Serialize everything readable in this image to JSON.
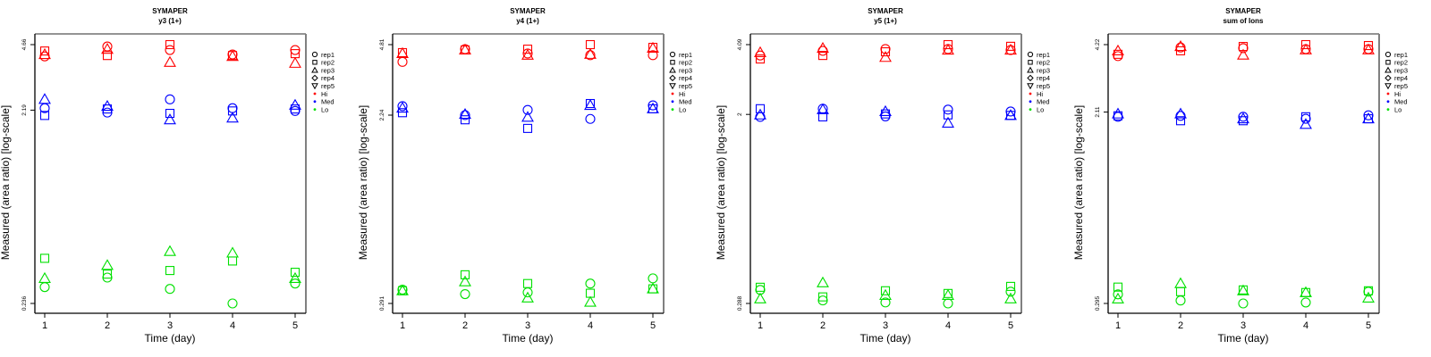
{
  "chart_data": [
    {
      "type": "scatter",
      "title": "SYMAPER",
      "subtitle": "y3 (1+)",
      "xlabel": "Time (day)",
      "ylabel": "Measured (area ratio) [log-scale]",
      "yscale": "log",
      "x_ticks": [
        "1",
        "2",
        "3",
        "4",
        "5"
      ],
      "y_ticks": [
        {
          "value": 4.66,
          "label": "4.66"
        },
        {
          "value": 2.19,
          "label": "2.19"
        },
        {
          "value": 0.236,
          "label": "0.236"
        }
      ],
      "ylim": [
        0.236,
        4.66
      ],
      "legend_position": "right",
      "series": [
        {
          "group": "Hi",
          "rep": "rep1",
          "values": [
            4.07,
            4.56,
            4.38,
            4.16,
            4.38
          ]
        },
        {
          "group": "Hi",
          "rep": "rep2",
          "values": [
            4.33,
            4.11,
            4.66,
            4.11,
            4.2
          ]
        },
        {
          "group": "Hi",
          "rep": "rep3",
          "values": [
            4.16,
            4.42,
            3.8,
            4.07,
            3.76
          ]
        },
        {
          "group": "Med",
          "rep": "rep1",
          "values": [
            2.24,
            2.13,
            2.48,
            2.24,
            2.17
          ]
        },
        {
          "group": "Med",
          "rep": "rep2",
          "values": [
            2.06,
            2.22,
            2.11,
            2.17,
            2.22
          ]
        },
        {
          "group": "Med",
          "rep": "rep3",
          "values": [
            2.48,
            2.29,
            1.96,
            2.0,
            2.32
          ]
        },
        {
          "group": "Lo",
          "rep": "rep1",
          "values": [
            0.285,
            0.318,
            0.279,
            0.236,
            0.297
          ]
        },
        {
          "group": "Lo",
          "rep": "rep2",
          "values": [
            0.397,
            0.331,
            0.345,
            0.385,
            0.338
          ]
        },
        {
          "group": "Lo",
          "rep": "rep3",
          "values": [
            0.315,
            0.366,
            0.43,
            0.422,
            0.315
          ]
        }
      ]
    },
    {
      "type": "scatter",
      "title": "SYMAPER",
      "subtitle": "y4 (1+)",
      "xlabel": "Time (day)",
      "ylabel": "Measured (area ratio) [log-scale]",
      "yscale": "log",
      "x_ticks": [
        "1",
        "2",
        "3",
        "4",
        "5"
      ],
      "y_ticks": [
        {
          "value": 4.81,
          "label": "4.81"
        },
        {
          "value": 2.24,
          "label": "2.24"
        },
        {
          "value": 0.291,
          "label": "0.291"
        }
      ],
      "ylim": [
        0.291,
        4.81
      ],
      "legend_position": "right",
      "series": [
        {
          "group": "Hi",
          "rep": "rep1",
          "values": [
            3.99,
            4.58,
            4.37,
            4.29,
            4.29
          ]
        },
        {
          "group": "Hi",
          "rep": "rep2",
          "values": [
            4.41,
            4.54,
            4.58,
            4.81,
            4.67
          ]
        },
        {
          "group": "Hi",
          "rep": "rep3",
          "values": [
            4.37,
            4.54,
            4.29,
            4.33,
            4.63
          ]
        },
        {
          "group": "Med",
          "rep": "rep1",
          "values": [
            2.47,
            2.24,
            2.37,
            2.15,
            2.49
          ]
        },
        {
          "group": "Med",
          "rep": "rep2",
          "values": [
            2.3,
            2.13,
            1.94,
            2.54,
            2.4
          ]
        },
        {
          "group": "Med",
          "rep": "rep3",
          "values": [
            2.42,
            2.26,
            2.19,
            2.49,
            2.4
          ]
        },
        {
          "group": "Lo",
          "rep": "rep1",
          "values": [
            0.338,
            0.322,
            0.328,
            0.361,
            0.382
          ]
        },
        {
          "group": "Lo",
          "rep": "rep2",
          "values": [
            0.334,
            0.397,
            0.361,
            0.325,
            0.341
          ]
        },
        {
          "group": "Lo",
          "rep": "rep3",
          "values": [
            0.334,
            0.368,
            0.309,
            0.295,
            0.341
          ]
        }
      ]
    },
    {
      "type": "scatter",
      "title": "SYMAPER",
      "subtitle": "y5 (1+)",
      "xlabel": "Time (day)",
      "ylabel": "Measured (area ratio) [log-scale]",
      "yscale": "log",
      "x_ticks": [
        "1",
        "2",
        "3",
        "4",
        "5"
      ],
      "y_ticks": [
        {
          "value": 4.09,
          "label": "4.09"
        },
        {
          "value": 2,
          "label": "2"
        },
        {
          "value": 0.288,
          "label": "0.288"
        }
      ],
      "ylim": [
        0.288,
        4.09
      ],
      "legend_position": "right",
      "series": [
        {
          "group": "Hi",
          "rep": "rep1",
          "values": [
            3.66,
            3.84,
            3.91,
            3.91,
            3.87
          ]
        },
        {
          "group": "Hi",
          "rep": "rep2",
          "values": [
            3.53,
            3.66,
            3.8,
            4.09,
            4.02
          ]
        },
        {
          "group": "Hi",
          "rep": "rep3",
          "values": [
            3.77,
            3.94,
            3.59,
            3.87,
            3.87
          ]
        },
        {
          "group": "Med",
          "rep": "rep1",
          "values": [
            1.95,
            2.12,
            1.96,
            2.1,
            2.06
          ]
        },
        {
          "group": "Med",
          "rep": "rep2",
          "values": [
            2.12,
            1.95,
            2.01,
            1.99,
            1.98
          ]
        },
        {
          "group": "Med",
          "rep": "rep3",
          "values": [
            1.99,
            2.1,
            2.06,
            1.83,
            1.98
          ]
        },
        {
          "group": "Lo",
          "rep": "rep1",
          "values": [
            0.331,
            0.297,
            0.291,
            0.288,
            0.325
          ]
        },
        {
          "group": "Lo",
          "rep": "rep2",
          "values": [
            0.34,
            0.308,
            0.328,
            0.319,
            0.343
          ]
        },
        {
          "group": "Lo",
          "rep": "rep3",
          "values": [
            0.302,
            0.356,
            0.313,
            0.313,
            0.302
          ]
        }
      ]
    },
    {
      "type": "scatter",
      "title": "SYMAPER",
      "subtitle": "sum of Ions",
      "xlabel": "Time (day)",
      "ylabel": "Measured (area ratio) [log-scale]",
      "yscale": "log",
      "x_ticks": [
        "1",
        "2",
        "3",
        "4",
        "5"
      ],
      "y_ticks": [
        {
          "value": 4.22,
          "label": "4.22"
        },
        {
          "value": 2.11,
          "label": "2.11"
        },
        {
          "value": 0.295,
          "label": "0.295"
        }
      ],
      "ylim": [
        0.295,
        4.22
      ],
      "legend_position": "right",
      "series": [
        {
          "group": "Hi",
          "rep": "rep1",
          "values": [
            3.75,
            4.1,
            4.07,
            4.03,
            4.03
          ]
        },
        {
          "group": "Hi",
          "rep": "rep2",
          "values": [
            3.82,
            3.96,
            4.14,
            4.22,
            4.18
          ]
        },
        {
          "group": "Hi",
          "rep": "rep3",
          "values": [
            3.96,
            4.14,
            3.79,
            4.0,
            4.0
          ]
        },
        {
          "group": "Med",
          "rep": "rep1",
          "values": [
            2.01,
            2.03,
            2.01,
            1.97,
            2.04
          ]
        },
        {
          "group": "Med",
          "rep": "rep2",
          "values": [
            2.03,
            1.93,
            1.93,
            2.01,
            1.97
          ]
        },
        {
          "group": "Med",
          "rep": "rep3",
          "values": [
            2.07,
            2.07,
            1.97,
            1.86,
            1.97
          ]
        },
        {
          "group": "Lo",
          "rep": "rep1",
          "values": [
            0.324,
            0.304,
            0.295,
            0.298,
            0.333
          ]
        },
        {
          "group": "Lo",
          "rep": "rep2",
          "values": [
            0.349,
            0.333,
            0.339,
            0.33,
            0.336
          ]
        },
        {
          "group": "Lo",
          "rep": "rep3",
          "values": [
            0.309,
            0.362,
            0.336,
            0.33,
            0.312
          ]
        }
      ]
    }
  ],
  "legend": {
    "reps": [
      {
        "label": "rep1",
        "shape": "circle"
      },
      {
        "label": "rep2",
        "shape": "square"
      },
      {
        "label": "rep3",
        "shape": "triangle-up"
      },
      {
        "label": "rep4",
        "shape": "diamond"
      },
      {
        "label": "rep5",
        "shape": "triangle-down"
      }
    ],
    "groups": [
      {
        "label": "Hi",
        "color": "#ff0000"
      },
      {
        "label": "Med",
        "color": "#0000ff"
      },
      {
        "label": "Lo",
        "color": "#00e000"
      }
    ]
  },
  "colors": {
    "Hi": "#ff0000",
    "Med": "#0000ff",
    "Lo": "#00e000",
    "axis": "#000000",
    "frame_shadow": "#808080"
  }
}
